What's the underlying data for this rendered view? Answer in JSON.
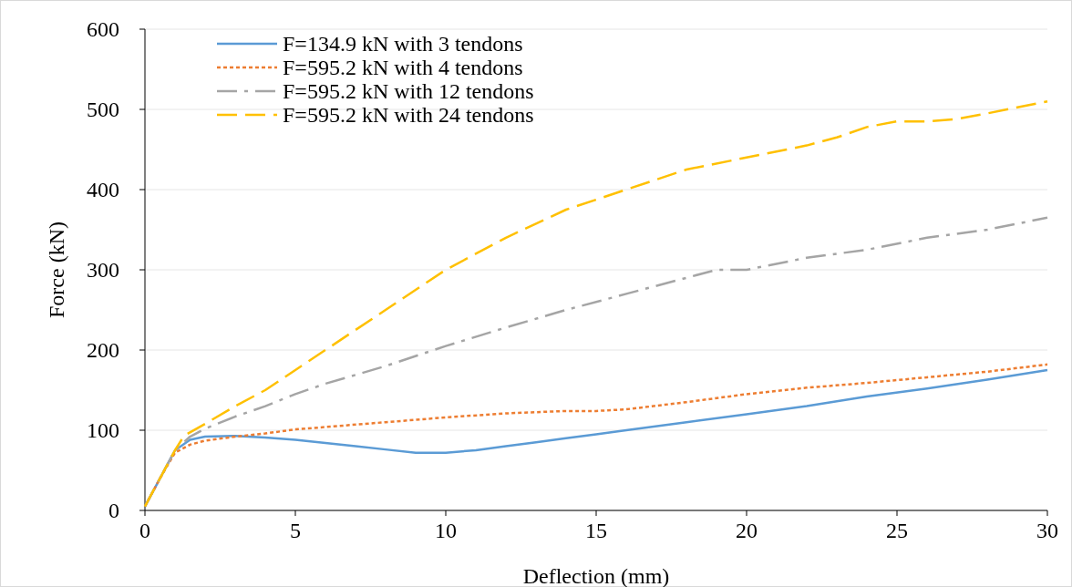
{
  "chart_data": {
    "type": "line",
    "xlabel": "Deflection (mm)",
    "ylabel": "Force (kN)",
    "xlim": [
      0,
      30
    ],
    "xticks": [
      0,
      5,
      10,
      15,
      20,
      25,
      30
    ],
    "ylim": [
      0,
      600
    ],
    "yticks": [
      0,
      100,
      200,
      300,
      400,
      500,
      600
    ],
    "grid": "y",
    "legend": "top left",
    "series": [
      {
        "name": "F=134.9 kN with 3 tendons",
        "color": "#5b9bd5",
        "line_style": "solid",
        "x": [
          0,
          0.5,
          1,
          1.5,
          2,
          3,
          4,
          5,
          6,
          7,
          8,
          9,
          10,
          11,
          12,
          13,
          14,
          15,
          16,
          18,
          20,
          22,
          24,
          26,
          28,
          30
        ],
        "values": [
          5,
          40,
          75,
          88,
          92,
          93,
          91,
          88,
          84,
          80,
          76,
          72,
          72,
          75,
          80,
          85,
          90,
          95,
          100,
          110,
          120,
          130,
          142,
          152,
          163,
          175
        ]
      },
      {
        "name": "F=595.2 kN with 4 tendons",
        "color": "#ed7d31",
        "line_style": "dotted",
        "x": [
          0,
          0.5,
          1,
          1.5,
          2,
          3,
          4,
          5,
          6,
          8,
          10,
          12,
          14,
          15,
          16,
          18,
          20,
          22,
          24,
          26,
          28,
          30
        ],
        "values": [
          5,
          40,
          72,
          82,
          87,
          92,
          96,
          101,
          104,
          110,
          116,
          121,
          124,
          124,
          126,
          135,
          145,
          153,
          159,
          166,
          173,
          182
        ]
      },
      {
        "name": "F=595.2 kN with 12 tendons",
        "color": "#a5a5a5",
        "line_style": "dashdot",
        "x": [
          0,
          0.5,
          1,
          1.5,
          2,
          3,
          4,
          5,
          6,
          8,
          10,
          12,
          14,
          16,
          18,
          19,
          20,
          22,
          24,
          26,
          28,
          30
        ],
        "values": [
          5,
          40,
          75,
          92,
          102,
          117,
          130,
          145,
          158,
          180,
          205,
          228,
          250,
          270,
          290,
          300,
          300,
          315,
          325,
          340,
          350,
          365
        ]
      },
      {
        "name": "F=595.2 kN with 24 tendons",
        "color": "#ffc000",
        "line_style": "dashed",
        "x": [
          0,
          0.5,
          1,
          1.3,
          2,
          3,
          4,
          5,
          6,
          8,
          10,
          12,
          14,
          16,
          18,
          20,
          22,
          23,
          24,
          25,
          26,
          27,
          28,
          30
        ],
        "values": [
          5,
          40,
          75,
          93,
          108,
          130,
          150,
          175,
          200,
          250,
          300,
          340,
          375,
          400,
          425,
          440,
          455,
          465,
          478,
          485,
          485,
          488,
          495,
          510
        ]
      }
    ]
  }
}
